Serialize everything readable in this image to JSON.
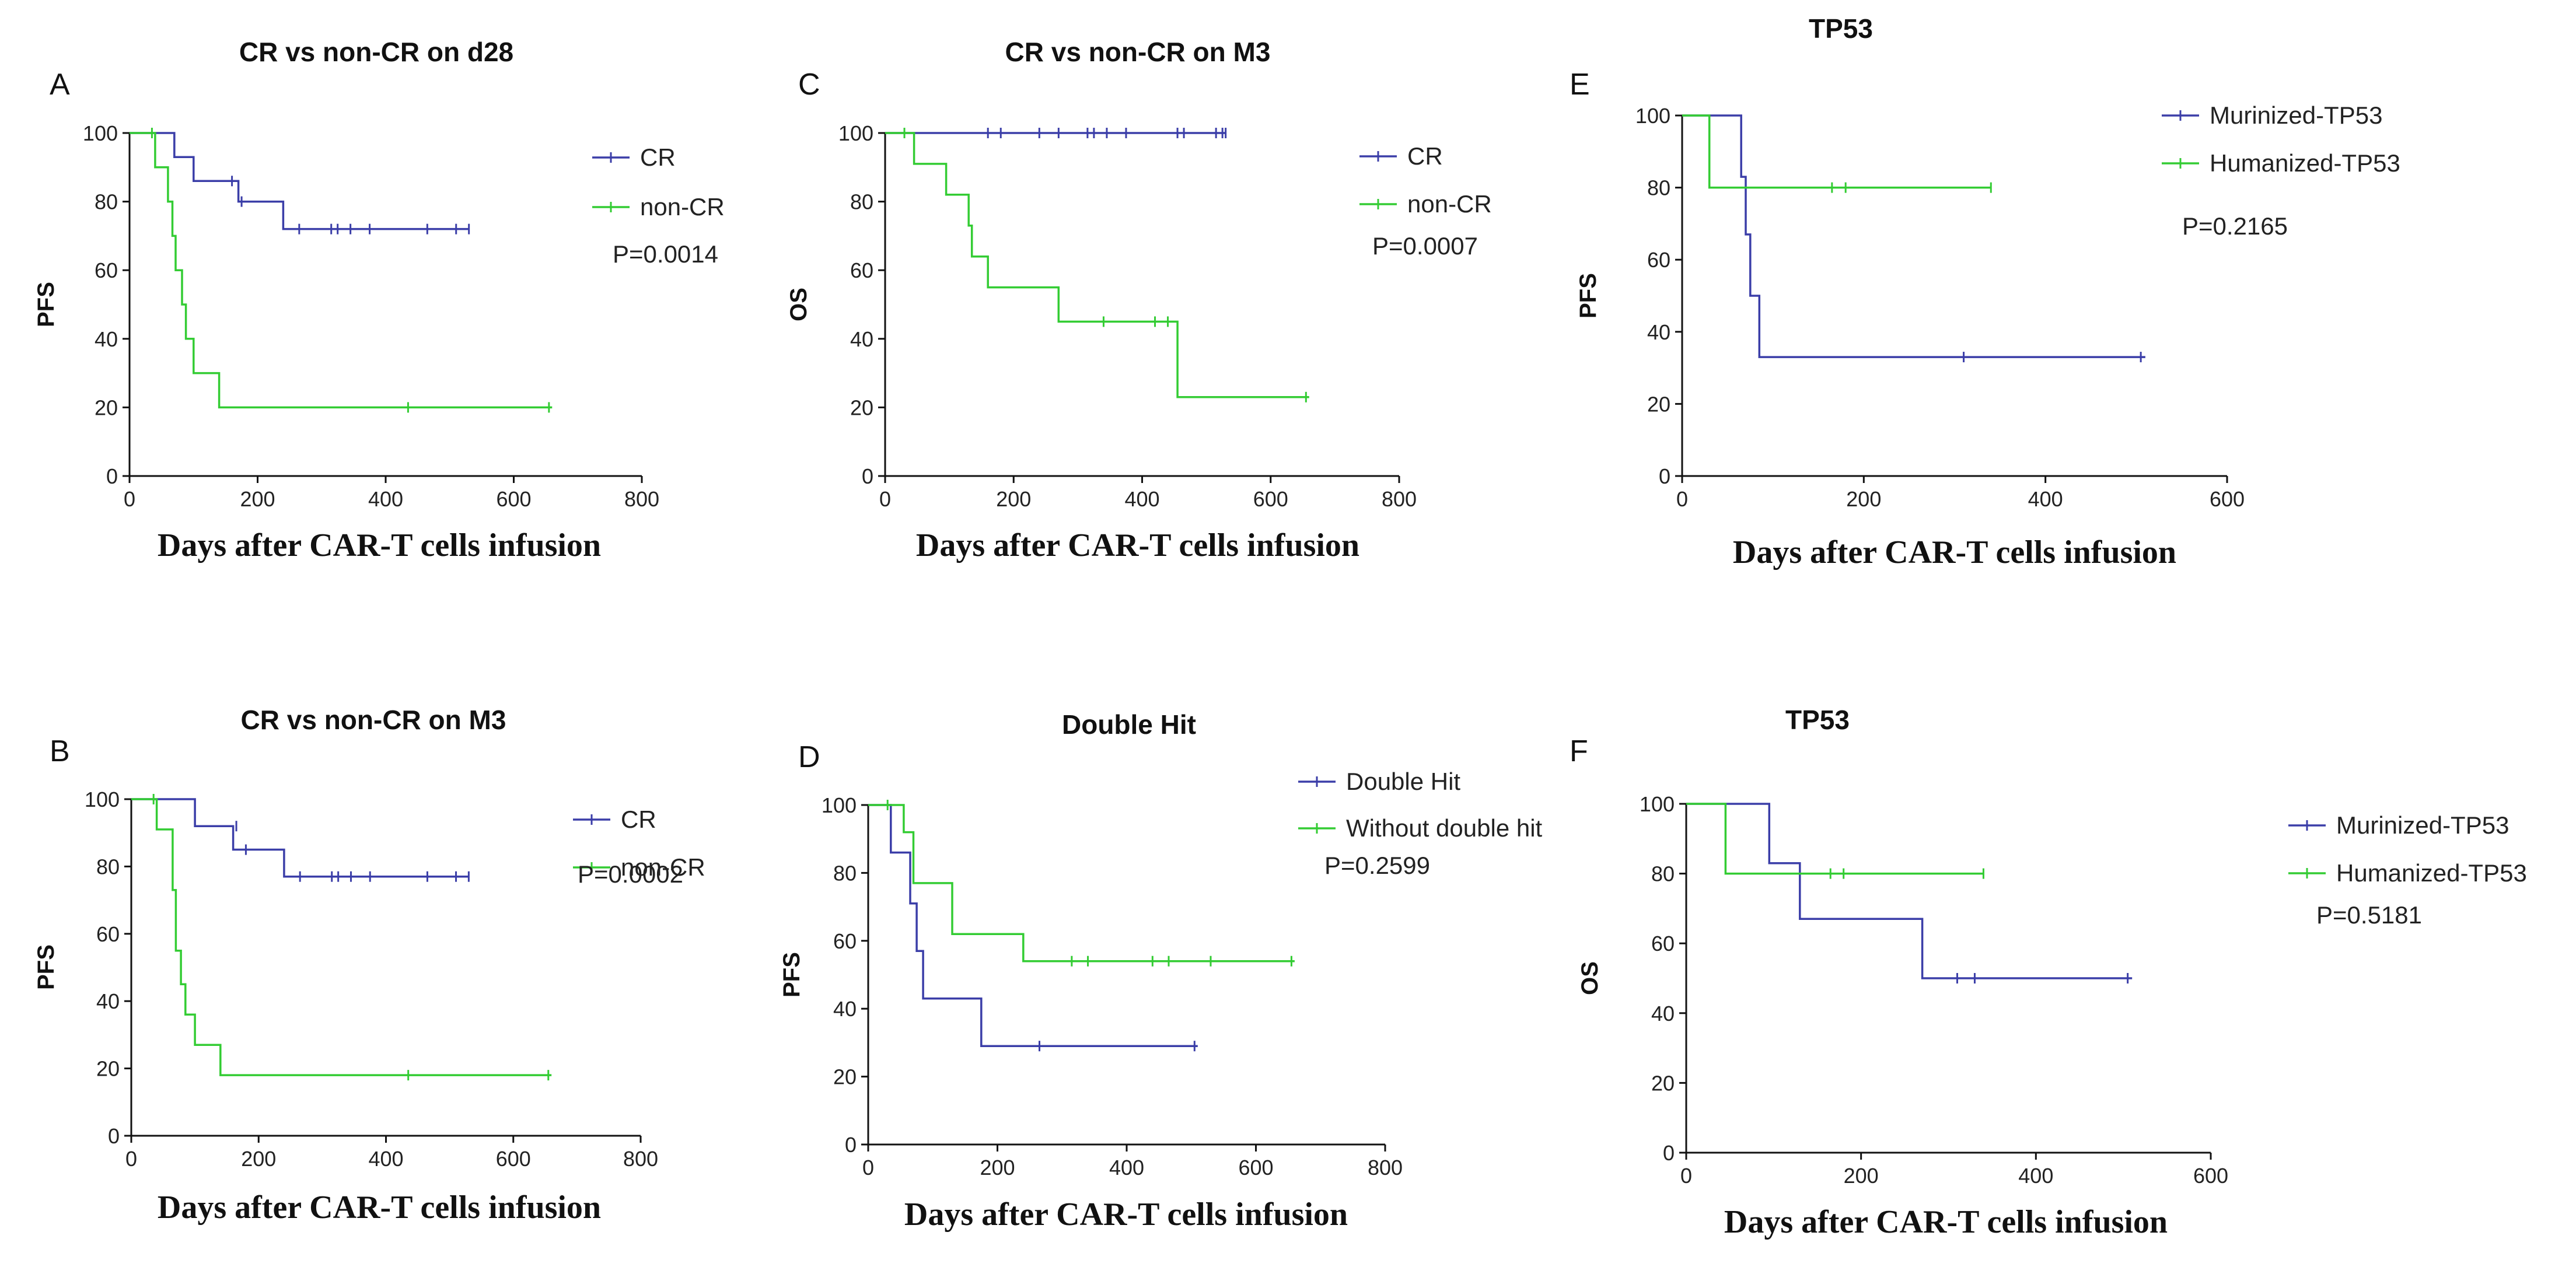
{
  "figure": {
    "series_colors": {
      "blue": "#3b3ea8",
      "green": "#33cc33"
    }
  },
  "chart_data": [
    {
      "panel": "A",
      "type": "line",
      "title": "CR vs non-CR on d28",
      "xlabel": "Days after CAR-T cells infusion",
      "ylabel": "PFS",
      "xlim": [
        0,
        800
      ],
      "ylim": [
        0,
        100
      ],
      "xticks": [
        0,
        200,
        400,
        600,
        800
      ],
      "yticks": [
        0,
        20,
        40,
        60,
        80,
        100
      ],
      "pvalue": "P=0.0014",
      "series": [
        {
          "name": "CR",
          "color": "#3b3ea8",
          "steps": [
            [
              0,
              100
            ],
            [
              70,
              100
            ],
            [
              70,
              93
            ],
            [
              100,
              93
            ],
            [
              100,
              86
            ],
            [
              170,
              86
            ],
            [
              170,
              80
            ],
            [
              240,
              80
            ],
            [
              240,
              72
            ],
            [
              530,
              72
            ]
          ],
          "censored": [
            [
              160,
              86
            ],
            [
              175,
              80
            ],
            [
              265,
              72
            ],
            [
              315,
              72
            ],
            [
              325,
              72
            ],
            [
              345,
              72
            ],
            [
              375,
              72
            ],
            [
              465,
              72
            ],
            [
              510,
              72
            ],
            [
              530,
              72
            ]
          ]
        },
        {
          "name": "non-CR",
          "color": "#33cc33",
          "steps": [
            [
              0,
              100
            ],
            [
              40,
              100
            ],
            [
              40,
              90
            ],
            [
              60,
              90
            ],
            [
              60,
              80
            ],
            [
              67,
              80
            ],
            [
              67,
              70
            ],
            [
              72,
              70
            ],
            [
              72,
              60
            ],
            [
              82,
              60
            ],
            [
              82,
              50
            ],
            [
              88,
              50
            ],
            [
              88,
              40
            ],
            [
              100,
              40
            ],
            [
              100,
              30
            ],
            [
              140,
              30
            ],
            [
              140,
              20
            ],
            [
              660,
              20
            ]
          ],
          "censored": [
            [
              35,
              100
            ],
            [
              435,
              20
            ],
            [
              655,
              20
            ]
          ]
        }
      ]
    },
    {
      "panel": "B",
      "type": "line",
      "title": "CR vs non-CR on M3",
      "xlabel": "Days after CAR-T cells infusion",
      "ylabel": "PFS",
      "xlim": [
        0,
        800
      ],
      "ylim": [
        0,
        100
      ],
      "xticks": [
        0,
        200,
        400,
        600,
        800
      ],
      "yticks": [
        0,
        20,
        40,
        60,
        80,
        100
      ],
      "pvalue": "P=0.0002",
      "series": [
        {
          "name": "CR",
          "color": "#3b3ea8",
          "steps": [
            [
              0,
              100
            ],
            [
              100,
              100
            ],
            [
              100,
              92
            ],
            [
              160,
              92
            ],
            [
              160,
              85
            ],
            [
              240,
              85
            ],
            [
              240,
              77
            ],
            [
              530,
              77
            ]
          ],
          "censored": [
            [
              165,
              92
            ],
            [
              180,
              85
            ],
            [
              265,
              77
            ],
            [
              315,
              77
            ],
            [
              325,
              77
            ],
            [
              345,
              77
            ],
            [
              375,
              77
            ],
            [
              465,
              77
            ],
            [
              510,
              77
            ],
            [
              530,
              77
            ]
          ]
        },
        {
          "name": "non-CR",
          "color": "#33cc33",
          "steps": [
            [
              0,
              100
            ],
            [
              40,
              100
            ],
            [
              40,
              91
            ],
            [
              65,
              91
            ],
            [
              65,
              73
            ],
            [
              70,
              73
            ],
            [
              70,
              55
            ],
            [
              78,
              55
            ],
            [
              78,
              45
            ],
            [
              85,
              45
            ],
            [
              85,
              36
            ],
            [
              100,
              36
            ],
            [
              100,
              27
            ],
            [
              140,
              27
            ],
            [
              140,
              18
            ],
            [
              660,
              18
            ]
          ],
          "censored": [
            [
              35,
              100
            ],
            [
              435,
              18
            ],
            [
              655,
              18
            ]
          ]
        }
      ]
    },
    {
      "panel": "C",
      "type": "line",
      "title": "CR vs non-CR on M3",
      "xlabel": "Days after CAR-T cells infusion",
      "ylabel": "OS",
      "xlim": [
        0,
        800
      ],
      "ylim": [
        0,
        100
      ],
      "xticks": [
        0,
        200,
        400,
        600,
        800
      ],
      "yticks": [
        0,
        20,
        40,
        60,
        80,
        100
      ],
      "pvalue": "P=0.0007",
      "series": [
        {
          "name": "CR",
          "color": "#3b3ea8",
          "steps": [
            [
              0,
              100
            ],
            [
              530,
              100
            ]
          ],
          "censored": [
            [
              160,
              100
            ],
            [
              180,
              100
            ],
            [
              240,
              100
            ],
            [
              270,
              100
            ],
            [
              315,
              100
            ],
            [
              325,
              100
            ],
            [
              345,
              100
            ],
            [
              375,
              100
            ],
            [
              455,
              100
            ],
            [
              465,
              100
            ],
            [
              515,
              100
            ],
            [
              525,
              100
            ],
            [
              530,
              100
            ]
          ]
        },
        {
          "name": "non-CR",
          "color": "#33cc33",
          "steps": [
            [
              0,
              100
            ],
            [
              45,
              100
            ],
            [
              45,
              91
            ],
            [
              95,
              91
            ],
            [
              95,
              82
            ],
            [
              130,
              82
            ],
            [
              130,
              73
            ],
            [
              135,
              73
            ],
            [
              135,
              64
            ],
            [
              160,
              64
            ],
            [
              160,
              55
            ],
            [
              270,
              55
            ],
            [
              270,
              45
            ],
            [
              455,
              45
            ],
            [
              455,
              23
            ],
            [
              660,
              23
            ]
          ],
          "censored": [
            [
              30,
              100
            ],
            [
              340,
              45
            ],
            [
              420,
              45
            ],
            [
              440,
              45
            ],
            [
              655,
              23
            ]
          ]
        }
      ]
    },
    {
      "panel": "D",
      "type": "line",
      "title": "Double Hit",
      "xlabel": "Days after CAR-T cells infusion",
      "ylabel": "PFS",
      "xlim": [
        0,
        800
      ],
      "ylim": [
        0,
        100
      ],
      "xticks": [
        0,
        200,
        400,
        600,
        800
      ],
      "yticks": [
        0,
        20,
        40,
        60,
        80,
        100
      ],
      "pvalue": "P=0.2599",
      "series": [
        {
          "name": "Double Hit",
          "color": "#3b3ea8",
          "steps": [
            [
              0,
              100
            ],
            [
              35,
              100
            ],
            [
              35,
              86
            ],
            [
              65,
              86
            ],
            [
              65,
              71
            ],
            [
              75,
              71
            ],
            [
              75,
              57
            ],
            [
              85,
              57
            ],
            [
              85,
              43
            ],
            [
              175,
              43
            ],
            [
              175,
              29
            ],
            [
              510,
              29
            ]
          ],
          "censored": [
            [
              265,
              29
            ],
            [
              505,
              29
            ]
          ]
        },
        {
          "name": "Without double hit",
          "color": "#33cc33",
          "steps": [
            [
              0,
              100
            ],
            [
              55,
              100
            ],
            [
              55,
              92
            ],
            [
              70,
              92
            ],
            [
              70,
              77
            ],
            [
              130,
              77
            ],
            [
              130,
              62
            ],
            [
              240,
              62
            ],
            [
              240,
              54
            ],
            [
              660,
              54
            ]
          ],
          "censored": [
            [
              30,
              100
            ],
            [
              315,
              54
            ],
            [
              340,
              54
            ],
            [
              440,
              54
            ],
            [
              465,
              54
            ],
            [
              530,
              54
            ],
            [
              655,
              54
            ]
          ]
        }
      ]
    },
    {
      "panel": "E",
      "type": "line",
      "title": "TP53",
      "xlabel": "Days after CAR-T cells infusion",
      "ylabel": "PFS",
      "xlim": [
        0,
        600
      ],
      "ylim": [
        0,
        100
      ],
      "xticks": [
        0,
        200,
        400,
        600
      ],
      "yticks": [
        0,
        20,
        40,
        60,
        80,
        100
      ],
      "pvalue": "P=0.2165",
      "series": [
        {
          "name": "Murinized-TP53",
          "color": "#3b3ea8",
          "steps": [
            [
              0,
              100
            ],
            [
              65,
              100
            ],
            [
              65,
              83
            ],
            [
              70,
              83
            ],
            [
              70,
              67
            ],
            [
              75,
              67
            ],
            [
              75,
              50
            ],
            [
              85,
              50
            ],
            [
              85,
              33
            ],
            [
              510,
              33
            ]
          ],
          "censored": [
            [
              310,
              33
            ],
            [
              505,
              33
            ]
          ]
        },
        {
          "name": "Humanized-TP53",
          "color": "#33cc33",
          "steps": [
            [
              0,
              100
            ],
            [
              30,
              100
            ],
            [
              30,
              80
            ],
            [
              340,
              80
            ]
          ],
          "censored": [
            [
              165,
              80
            ],
            [
              180,
              80
            ],
            [
              340,
              80
            ]
          ]
        }
      ]
    },
    {
      "panel": "F",
      "type": "line",
      "title": "TP53",
      "xlabel": "Days after CAR-T cells infusion",
      "ylabel": "OS",
      "xlim": [
        0,
        600
      ],
      "ylim": [
        0,
        100
      ],
      "xticks": [
        0,
        200,
        400,
        600
      ],
      "yticks": [
        0,
        20,
        40,
        60,
        80,
        100
      ],
      "pvalue": "P=0.5181",
      "series": [
        {
          "name": "Murinized-TP53",
          "color": "#3b3ea8",
          "steps": [
            [
              0,
              100
            ],
            [
              95,
              100
            ],
            [
              95,
              83
            ],
            [
              130,
              83
            ],
            [
              130,
              67
            ],
            [
              270,
              67
            ],
            [
              270,
              50
            ],
            [
              510,
              50
            ]
          ],
          "censored": [
            [
              310,
              50
            ],
            [
              330,
              50
            ],
            [
              505,
              50
            ]
          ]
        },
        {
          "name": "Humanized-TP53",
          "color": "#33cc33",
          "steps": [
            [
              0,
              100
            ],
            [
              45,
              100
            ],
            [
              45,
              80
            ],
            [
              340,
              80
            ]
          ],
          "censored": [
            [
              165,
              80
            ],
            [
              180,
              80
            ],
            [
              340,
              80
            ]
          ]
        }
      ]
    }
  ]
}
